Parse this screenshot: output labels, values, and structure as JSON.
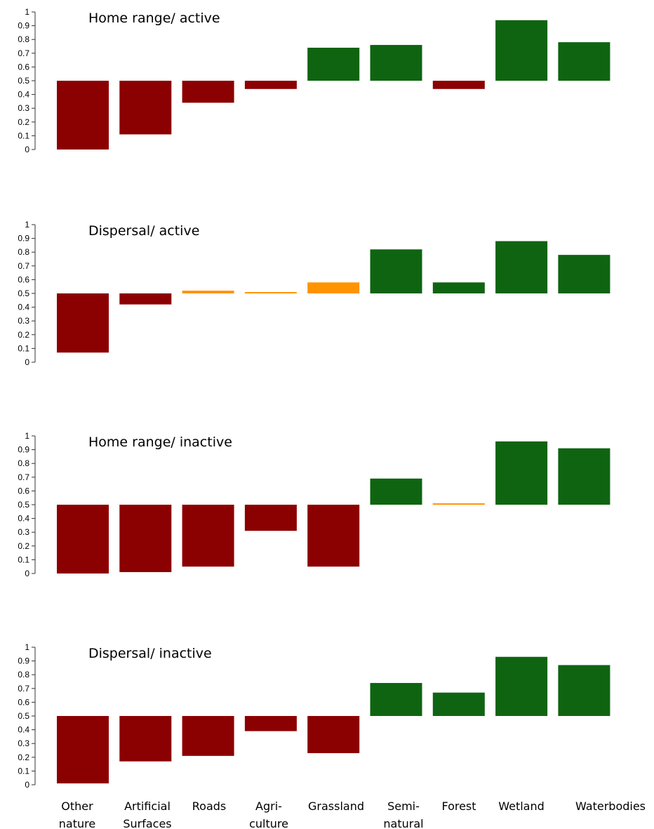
{
  "chart_data": {
    "type": "bar",
    "baseline": 0.5,
    "ylim": [
      0,
      1
    ],
    "yticks": [
      "0",
      "0.1",
      "0.2",
      "0.3",
      "0.4",
      "0.5",
      "0.6",
      "0.7",
      "0.8",
      "0.9",
      "1"
    ],
    "categories": [
      [
        "Other",
        "nature"
      ],
      [
        "Artificial",
        "Surfaces"
      ],
      [
        "Roads"
      ],
      [
        "Agri-",
        "culture"
      ],
      [
        "Grassland"
      ],
      [
        "Semi-",
        "natural"
      ],
      [
        "Forest"
      ],
      [
        "Wetland"
      ],
      [
        "Waterbodies"
      ]
    ],
    "colors": {
      "negative": "#8b0000",
      "neutral": "#ff9400",
      "positive": "#0f6411"
    },
    "panels": [
      {
        "title": "Home range/ active",
        "values": [
          0.0,
          0.11,
          0.34,
          0.44,
          0.74,
          0.76,
          0.44,
          0.94,
          0.78
        ],
        "classes": [
          "negative",
          "negative",
          "negative",
          "negative",
          "positive",
          "positive",
          "negative",
          "positive",
          "positive"
        ]
      },
      {
        "title": "Dispersal/ active",
        "values": [
          0.07,
          0.42,
          0.52,
          0.51,
          0.58,
          0.82,
          0.58,
          0.88,
          0.78
        ],
        "classes": [
          "negative",
          "negative",
          "neutral",
          "neutral",
          "neutral",
          "positive",
          "positive",
          "positive",
          "positive"
        ]
      },
      {
        "title": "Home range/ inactive",
        "values": [
          0.0,
          0.01,
          0.05,
          0.31,
          0.05,
          0.69,
          0.51,
          0.96,
          0.91
        ],
        "classes": [
          "negative",
          "negative",
          "negative",
          "negative",
          "negative",
          "positive",
          "neutral",
          "positive",
          "positive"
        ]
      },
      {
        "title": "Dispersal/ inactive",
        "values": [
          0.01,
          0.17,
          0.21,
          0.39,
          0.23,
          0.74,
          0.67,
          0.93,
          0.87
        ],
        "classes": [
          "negative",
          "negative",
          "negative",
          "negative",
          "negative",
          "positive",
          "positive",
          "positive",
          "positive"
        ]
      }
    ]
  }
}
